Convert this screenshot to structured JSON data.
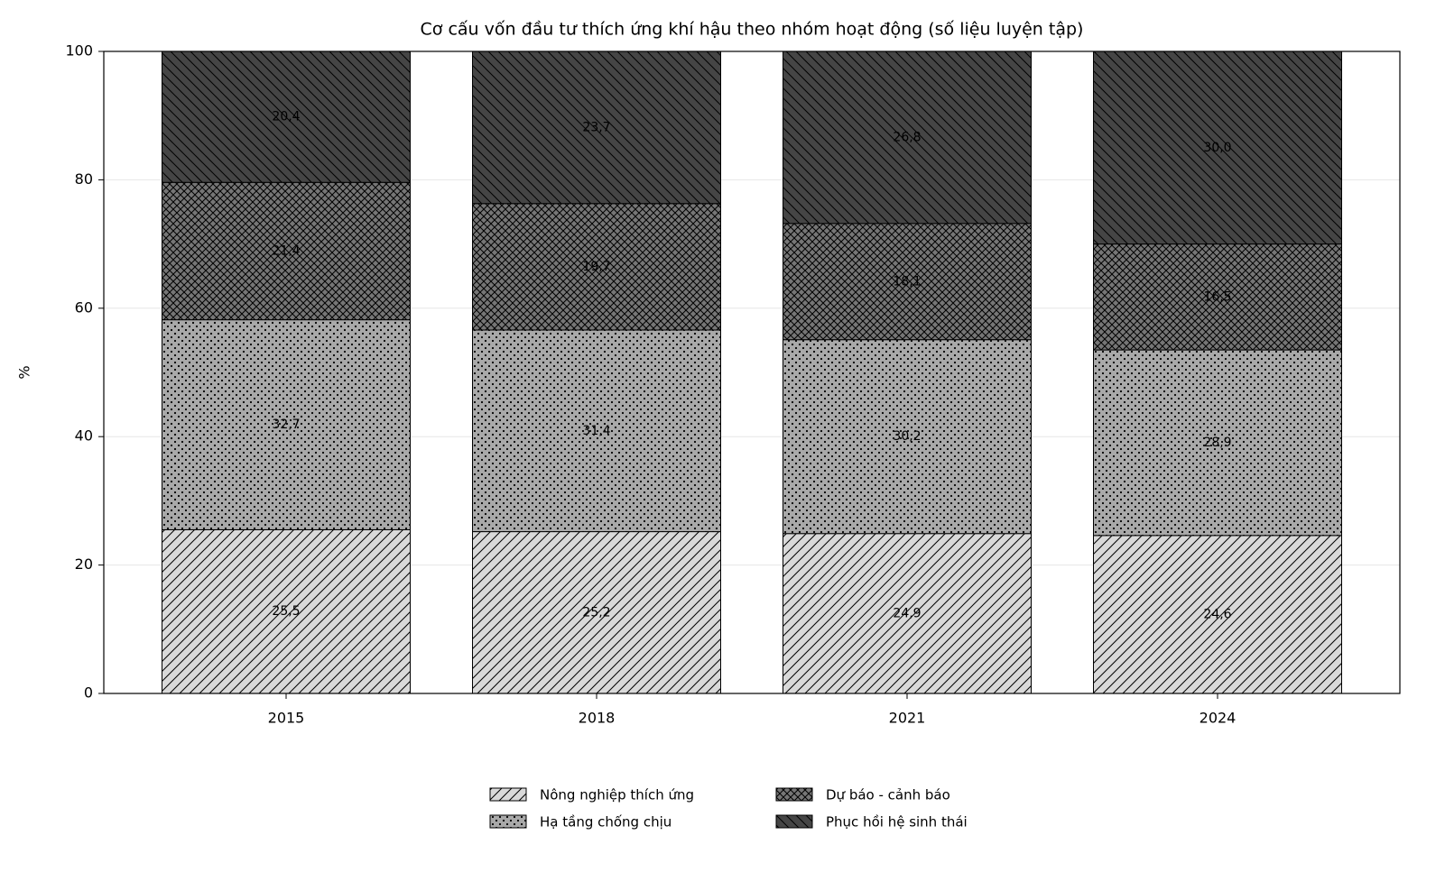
{
  "chart_data": {
    "type": "stacked_bar",
    "title": "Cơ cấu vốn đầu tư thích ứng khí hậu theo nhóm hoạt động (số liệu luyện tập)",
    "ylabel": "%",
    "categories": [
      "2015",
      "2018",
      "2021",
      "2024"
    ],
    "series": [
      {
        "name": "Nông nghiệp thích ứng",
        "color": "#d9d9d9",
        "hatch": "/",
        "values": [
          25.5,
          25.2,
          24.9,
          24.6
        ],
        "value_labels": [
          "25,5",
          "25,2",
          "24,9",
          "24,6"
        ]
      },
      {
        "name": "Hạ tầng chống chịu",
        "color": "#a9a9a9",
        "hatch": ".",
        "values": [
          32.7,
          31.4,
          30.2,
          28.9
        ],
        "value_labels": [
          "32,7",
          "31,4",
          "30,2",
          "28,9"
        ]
      },
      {
        "name": "Dự báo - cảnh báo",
        "color": "#767676",
        "hatch": "x",
        "values": [
          21.4,
          19.7,
          18.1,
          16.5
        ],
        "value_labels": [
          "21,4",
          "19,7",
          "18,1",
          "16,5"
        ]
      },
      {
        "name": "Phục hồi hệ sinh thái",
        "color": "#454545",
        "hatch": "\\",
        "values": [
          20.4,
          23.7,
          26.8,
          30.0
        ],
        "value_labels": [
          "20,4",
          "23,7",
          "26,8",
          "30,0"
        ]
      }
    ],
    "ylim": [
      0,
      100
    ],
    "yticks": [
      0,
      20,
      40,
      60,
      80,
      100
    ],
    "grid": true,
    "legend": "bottom"
  }
}
